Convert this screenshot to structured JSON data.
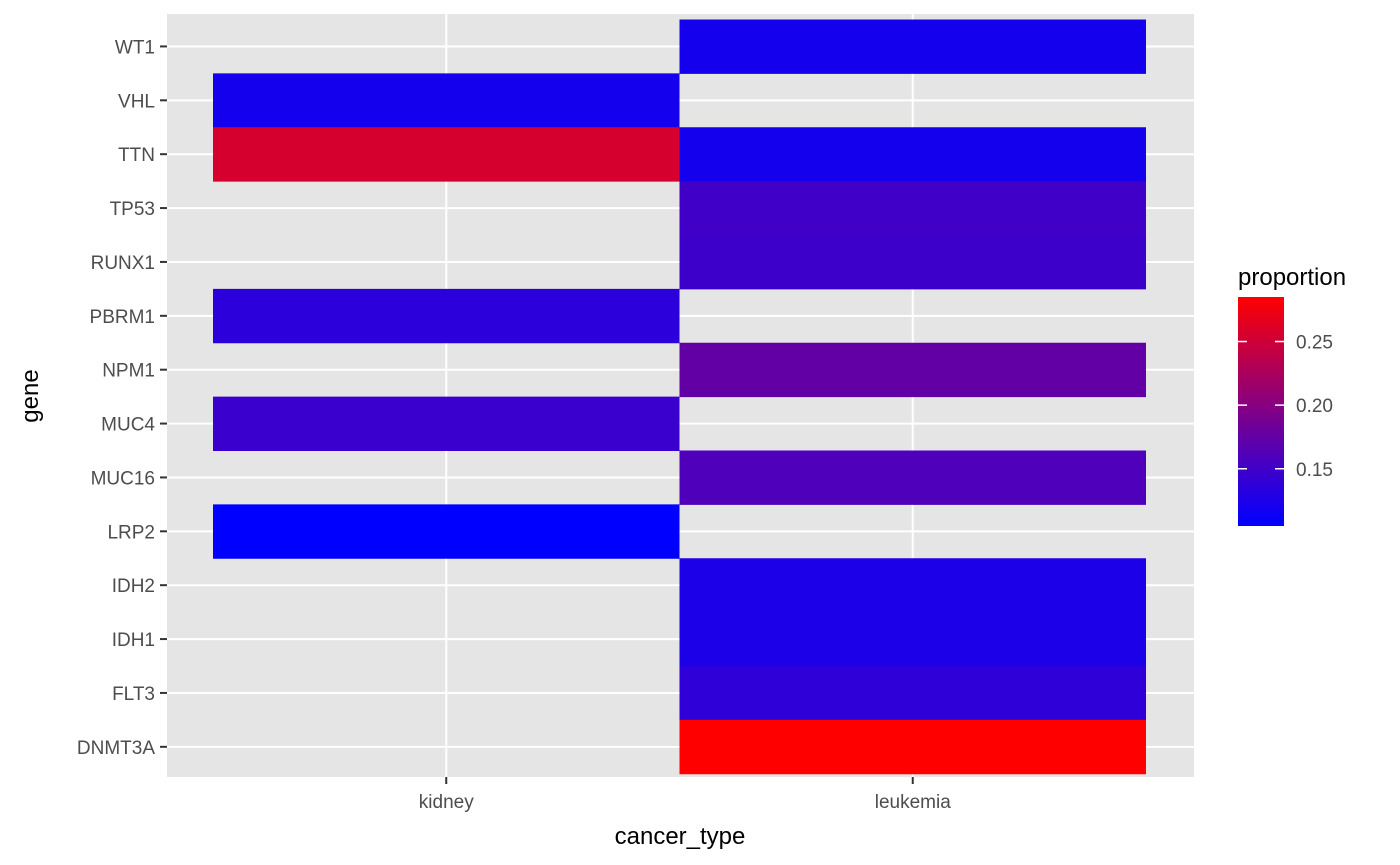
{
  "chart_data": {
    "type": "heatmap",
    "xlabel": "cancer_type",
    "ylabel": "gene",
    "x_categories": [
      "kidney",
      "leukemia"
    ],
    "y_categories": [
      "DNMT3A",
      "FLT3",
      "IDH1",
      "IDH2",
      "LRP2",
      "MUC16",
      "MUC4",
      "NPM1",
      "PBRM1",
      "RUNX1",
      "TP53",
      "TTN",
      "VHL",
      "WT1"
    ],
    "cells": [
      {
        "x": "leukemia",
        "y": "WT1",
        "value": 0.12
      },
      {
        "x": "kidney",
        "y": "VHL",
        "value": 0.12
      },
      {
        "x": "kidney",
        "y": "TTN",
        "value": 0.255
      },
      {
        "x": "leukemia",
        "y": "TTN",
        "value": 0.12
      },
      {
        "x": "leukemia",
        "y": "TP53",
        "value": 0.15
      },
      {
        "x": "leukemia",
        "y": "RUNX1",
        "value": 0.148
      },
      {
        "x": "kidney",
        "y": "PBRM1",
        "value": 0.135
      },
      {
        "x": "leukemia",
        "y": "NPM1",
        "value": 0.175
      },
      {
        "x": "kidney",
        "y": "MUC4",
        "value": 0.145
      },
      {
        "x": "leukemia",
        "y": "MUC16",
        "value": 0.16
      },
      {
        "x": "kidney",
        "y": "LRP2",
        "value": 0.105
      },
      {
        "x": "leukemia",
        "y": "IDH2",
        "value": 0.125
      },
      {
        "x": "leukemia",
        "y": "IDH1",
        "value": 0.125
      },
      {
        "x": "leukemia",
        "y": "FLT3",
        "value": 0.138
      },
      {
        "x": "leukemia",
        "y": "DNMT3A",
        "value": 0.285
      }
    ],
    "legend": {
      "title": "proportion",
      "placement": "right",
      "min": 0.105,
      "max": 0.285,
      "low_color": "#0000FF",
      "high_color": "#FF0000",
      "ticks": [
        0.15,
        0.2,
        0.25
      ],
      "tick_labels": [
        "0.15",
        "0.20",
        "0.25"
      ]
    },
    "grid": true,
    "panel_background": "#E5E5E5",
    "grid_color": "#FFFFFF"
  }
}
